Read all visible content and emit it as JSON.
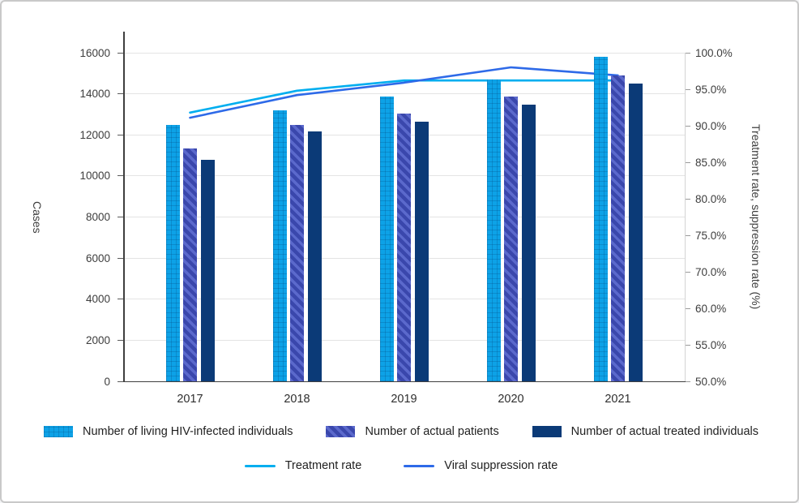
{
  "chart_data": {
    "type": "combo-grouped-bar-line-dual-axis",
    "categories": [
      "2017",
      "2018",
      "2019",
      "2020",
      "2021"
    ],
    "bar_series": [
      {
        "name": "Number of living HIV-infected individuals",
        "values": [
          12500,
          13200,
          13850,
          14700,
          15800
        ],
        "color": "#0DA2E7",
        "pattern": "grid",
        "pattern_color": "rgba(0,70,125,0.25)"
      },
      {
        "name": "Number of actual patients",
        "values": [
          11350,
          12500,
          13050,
          13880,
          14900
        ],
        "color": "#3A47AC",
        "pattern": "diagonal-stripes",
        "pattern_color": "#5B69CC"
      },
      {
        "name": "Number of actual treated individuals",
        "values": [
          10800,
          12150,
          12650,
          13470,
          14500
        ],
        "color": "#0B3A77",
        "pattern": "solid"
      }
    ],
    "line_series": [
      {
        "name": "Treatment rate",
        "values": [
          91.8,
          94.8,
          96.2,
          96.2,
          96.2
        ],
        "color": "#00AEEF"
      },
      {
        "name": "Viral suppression rate",
        "values": [
          91.1,
          94.2,
          95.9,
          98.0,
          96.9
        ],
        "color": "#2E6AE8"
      }
    ],
    "left_axis": {
      "title": "Cases",
      "min": 0,
      "max": 16000,
      "tick_step": 2000,
      "tick_labels": [
        "0",
        "2000",
        "4000",
        "6000",
        "8000",
        "10000",
        "12000",
        "14000",
        "16000"
      ]
    },
    "right_axis": {
      "title": "Treatment rate, suppression rate (%)",
      "tick_labels_top_to_bottom": [
        "100.0%",
        "95.0%",
        "90.0%",
        "85.0%",
        "80.0%",
        "75.0%",
        "70.0%",
        "60.0%",
        "55.0%",
        "50.0%"
      ]
    },
    "legend_position": "bottom",
    "grid": "horizontal"
  }
}
